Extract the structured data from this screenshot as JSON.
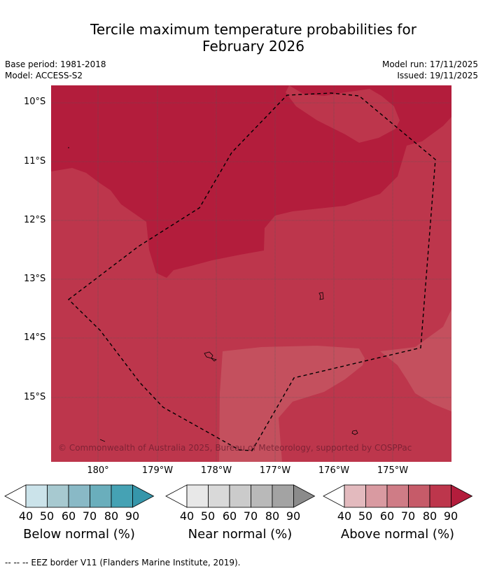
{
  "title_line1": "Tercile maximum temperature probabilities for",
  "title_line2": "February 2026",
  "base_period": "Base period: 1981-2018",
  "model": "Model: ACCESS-S2",
  "model_run": "Model run: 17/11/2025",
  "issued": "Issued: 19/11/2025",
  "map": {
    "lat_labels": [
      "10°S",
      "11°S",
      "12°S",
      "13°S",
      "14°S",
      "15°S"
    ],
    "lon_labels": [
      "180°",
      "179°W",
      "178°W",
      "177°W",
      "176°W",
      "175°W"
    ],
    "copyright": "© Commonwealth of Australia 2025, Bureau of Meteorology, supported by COSPPac",
    "colors": {
      "p90": "#b31d3c",
      "p80": "#bd364c",
      "p70": "#c4505e"
    }
  },
  "colorbars": [
    {
      "label": "Below normal (%)",
      "colors": [
        "#cbe3ea",
        "#a7c9d0",
        "#89b9c6",
        "#6aaebc",
        "#45a2b4",
        "#3696aa"
      ]
    },
    {
      "label": "Near normal (%)",
      "colors": [
        "#e8e8e8",
        "#d9d9d9",
        "#cbcbcb",
        "#b9b9b9",
        "#a3a3a3",
        "#8b8b8b"
      ]
    },
    {
      "label": "Above normal (%)",
      "colors": [
        "#e3babe",
        "#d99aa1",
        "#cf7c86",
        "#c65b69",
        "#bd364c",
        "#b31d3c"
      ]
    }
  ],
  "ticks": [
    "40",
    "50",
    "60",
    "70",
    "80",
    "90"
  ],
  "footer": "--  --  -- EEZ border V11 (Flanders Marine Institute, 2019)."
}
